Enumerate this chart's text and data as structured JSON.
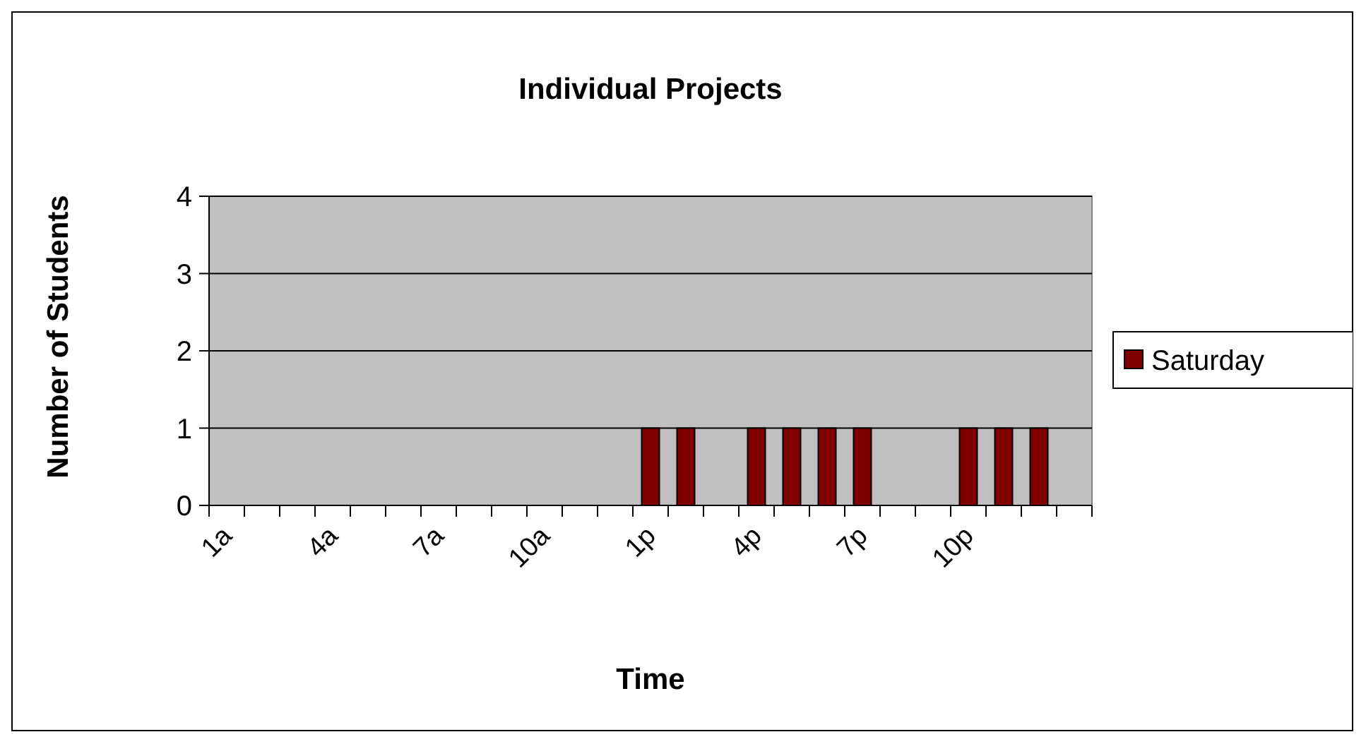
{
  "chart_data": {
    "type": "bar",
    "title": "Individual Projects",
    "xlabel": "Time",
    "ylabel": "Number of Students",
    "categories": [
      "1a",
      null,
      null,
      "4a",
      null,
      null,
      "7a",
      null,
      null,
      "10a",
      null,
      null,
      "1p",
      null,
      null,
      "4p",
      null,
      null,
      "7p",
      null,
      null,
      "10p",
      null,
      null,
      null
    ],
    "series": [
      {
        "name": "Saturday",
        "color": "#800000",
        "values": [
          0,
          0,
          0,
          0,
          0,
          0,
          0,
          0,
          0,
          0,
          0,
          0,
          1,
          1,
          0,
          1,
          1,
          1,
          1,
          0,
          0,
          1,
          1,
          1,
          0
        ]
      }
    ],
    "ylim": [
      0,
      4
    ],
    "yticks": [
      0,
      1,
      2,
      3,
      4
    ],
    "grid": "y",
    "legend": "right"
  }
}
